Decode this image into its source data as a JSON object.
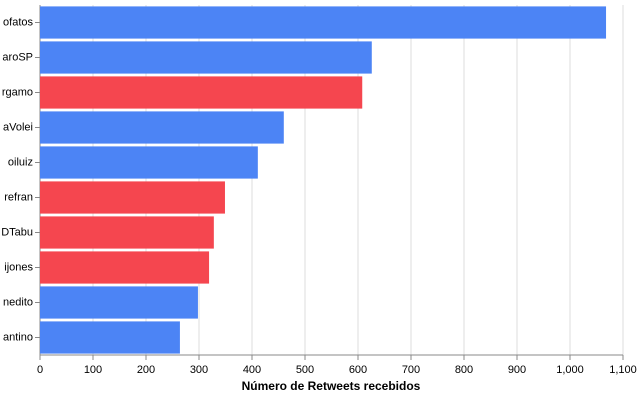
{
  "chart_data": {
    "type": "bar",
    "orientation": "horizontal",
    "x_label": "Número de Retweets recebidos",
    "categories": [
      "ofatos",
      "aroSP",
      "rgamo",
      "aVolei",
      "oiluiz",
      "refran",
      "DTabu",
      "ijones",
      "nedito",
      "antino"
    ],
    "values": [
      1068,
      626,
      608,
      460,
      411,
      349,
      328,
      319,
      298,
      264
    ],
    "colors": [
      "#4c84f5",
      "#4c84f5",
      "#f5464f",
      "#4c84f5",
      "#4c84f5",
      "#f5464f",
      "#f5464f",
      "#f5464f",
      "#4c84f5",
      "#4c84f5"
    ],
    "xlim": [
      0,
      1100
    ],
    "xticks": [
      0,
      100,
      200,
      300,
      400,
      500,
      600,
      700,
      800,
      900,
      {
        "value": 1000,
        "label": "1,000"
      },
      {
        "value": 1100,
        "label": "1,100"
      }
    ],
    "grid": true
  }
}
